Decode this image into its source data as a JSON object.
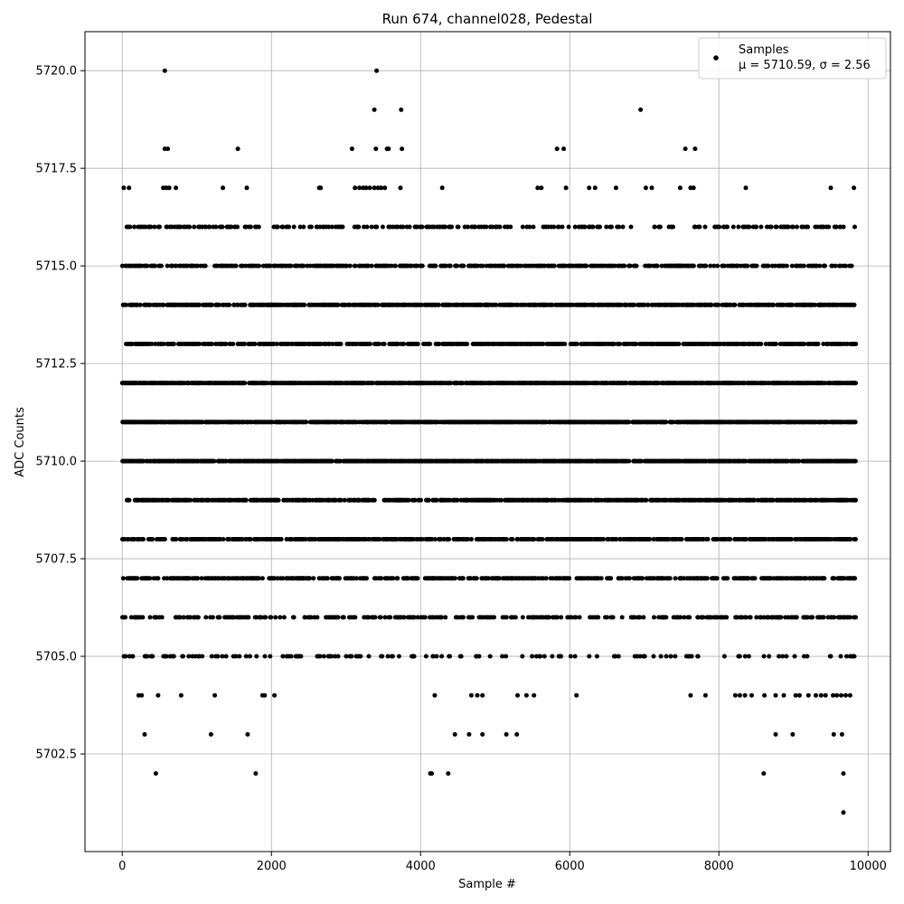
{
  "chart_data": {
    "type": "scatter",
    "title": "Run 674, channel028, Pedestal",
    "xlabel": "Sample #",
    "ylabel": "ADC Counts",
    "xlim": [
      -500,
      10300
    ],
    "ylim": [
      5700.0,
      5721.0
    ],
    "x_ticks": [
      0,
      2000,
      4000,
      6000,
      8000,
      10000
    ],
    "x_tick_labels": [
      "0",
      "2000",
      "4000",
      "6000",
      "8000",
      "10000"
    ],
    "y_ticks": [
      5702.5,
      5705.0,
      5707.5,
      5710.0,
      5712.5,
      5715.0,
      5717.5,
      5720.0
    ],
    "y_tick_labels": [
      "5702.5",
      "5705.0",
      "5707.5",
      "5710.0",
      "5712.5",
      "5715.0",
      "5717.5",
      "5720.0"
    ],
    "grid": true,
    "legend": {
      "placement": "top-right",
      "entries": [
        {
          "marker": "Samples",
          "stats": "μ = 5710.59, σ = 2.56"
        }
      ]
    },
    "series": [
      {
        "marker_color": "#000000",
        "x_range": [
          0,
          9830
        ],
        "levels": [
          {
            "y": 5708,
            "samples": [
              [
                0,
                9830
              ]
            ]
          },
          {
            "y": 5709,
            "samples": [
              [
                0,
                3380
              ],
              [
                3500,
                9830
              ]
            ]
          },
          {
            "y": 5710,
            "samples": [
              [
                0,
                9830
              ]
            ]
          },
          {
            "y": 5711,
            "samples": [
              [
                0,
                9830
              ]
            ]
          },
          {
            "y": 5712,
            "samples": [
              [
                0,
                9830
              ]
            ]
          },
          {
            "y": 5713,
            "samples": [
              [
                40,
                9830
              ]
            ]
          },
          {
            "y": 5714,
            "samples": [
              [
                0,
                9830
              ]
            ]
          },
          {
            "y": 5707,
            "samples": [
              [
                0,
                9830
              ]
            ]
          },
          {
            "y": 5715,
            "samples": [
              [
                0,
                9830
              ]
            ]
          },
          {
            "y": 5706,
            "samples": [
              [
                0,
                9830
              ]
            ]
          },
          {
            "y": 5716,
            "samples": [
              [
                20,
                9830
              ]
            ]
          },
          {
            "y": 5705,
            "samples": [
              [
                0,
                9830
              ]
            ]
          }
        ],
        "points": [
          [
            570,
            5720
          ],
          [
            3410,
            5720
          ],
          [
            3380,
            5719
          ],
          [
            3740,
            5719
          ],
          [
            6950,
            5719
          ],
          [
            570,
            5718
          ],
          [
            610,
            5718
          ],
          [
            1550,
            5718
          ],
          [
            3080,
            5718
          ],
          [
            3400,
            5718
          ],
          [
            3550,
            5718
          ],
          [
            3570,
            5718
          ],
          [
            3750,
            5718
          ],
          [
            5830,
            5718
          ],
          [
            5920,
            5718
          ],
          [
            7550,
            5718
          ],
          [
            7680,
            5718
          ],
          [
            20,
            5717
          ],
          [
            90,
            5717
          ],
          [
            550,
            5717
          ],
          [
            590,
            5717
          ],
          [
            630,
            5717
          ],
          [
            720,
            5717
          ],
          [
            1350,
            5717
          ],
          [
            1670,
            5717
          ],
          [
            2640,
            5717
          ],
          [
            2660,
            5717
          ],
          [
            3120,
            5717
          ],
          [
            3180,
            5717
          ],
          [
            3230,
            5717
          ],
          [
            3270,
            5717
          ],
          [
            3320,
            5717
          ],
          [
            3380,
            5717
          ],
          [
            3430,
            5717
          ],
          [
            3470,
            5717
          ],
          [
            3520,
            5717
          ],
          [
            3730,
            5717
          ],
          [
            4290,
            5717
          ],
          [
            5570,
            5717
          ],
          [
            5620,
            5717
          ],
          [
            5950,
            5717
          ],
          [
            6260,
            5717
          ],
          [
            6340,
            5717
          ],
          [
            6620,
            5717
          ],
          [
            7020,
            5717
          ],
          [
            7100,
            5717
          ],
          [
            7480,
            5717
          ],
          [
            7620,
            5717
          ],
          [
            7660,
            5717
          ],
          [
            8360,
            5717
          ],
          [
            9500,
            5717
          ],
          [
            9810,
            5717
          ],
          [
            220,
            5704
          ],
          [
            260,
            5704
          ],
          [
            480,
            5704
          ],
          [
            790,
            5704
          ],
          [
            1240,
            5704
          ],
          [
            1880,
            5704
          ],
          [
            1910,
            5704
          ],
          [
            2040,
            5704
          ],
          [
            4190,
            5704
          ],
          [
            4680,
            5704
          ],
          [
            4760,
            5704
          ],
          [
            4830,
            5704
          ],
          [
            5300,
            5704
          ],
          [
            5420,
            5704
          ],
          [
            5520,
            5704
          ],
          [
            6090,
            5704
          ],
          [
            7620,
            5704
          ],
          [
            7820,
            5704
          ],
          [
            8220,
            5704
          ],
          [
            8280,
            5704
          ],
          [
            8350,
            5704
          ],
          [
            8440,
            5704
          ],
          [
            8610,
            5704
          ],
          [
            8760,
            5704
          ],
          [
            8870,
            5704
          ],
          [
            9030,
            5704
          ],
          [
            9080,
            5704
          ],
          [
            9200,
            5704
          ],
          [
            9300,
            5704
          ],
          [
            9370,
            5704
          ],
          [
            9430,
            5704
          ],
          [
            9530,
            5704
          ],
          [
            9580,
            5704
          ],
          [
            9640,
            5704
          ],
          [
            9700,
            5704
          ],
          [
            9760,
            5704
          ],
          [
            300,
            5703
          ],
          [
            1190,
            5703
          ],
          [
            1680,
            5703
          ],
          [
            4460,
            5703
          ],
          [
            4650,
            5703
          ],
          [
            4830,
            5703
          ],
          [
            5150,
            5703
          ],
          [
            5290,
            5703
          ],
          [
            8760,
            5703
          ],
          [
            8990,
            5703
          ],
          [
            9540,
            5703
          ],
          [
            9650,
            5703
          ],
          [
            450,
            5702
          ],
          [
            1790,
            5702
          ],
          [
            4130,
            5702
          ],
          [
            4150,
            5702
          ],
          [
            4370,
            5702
          ],
          [
            8600,
            5702
          ],
          [
            9670,
            5702
          ],
          [
            9670,
            5701
          ]
        ]
      }
    ]
  }
}
